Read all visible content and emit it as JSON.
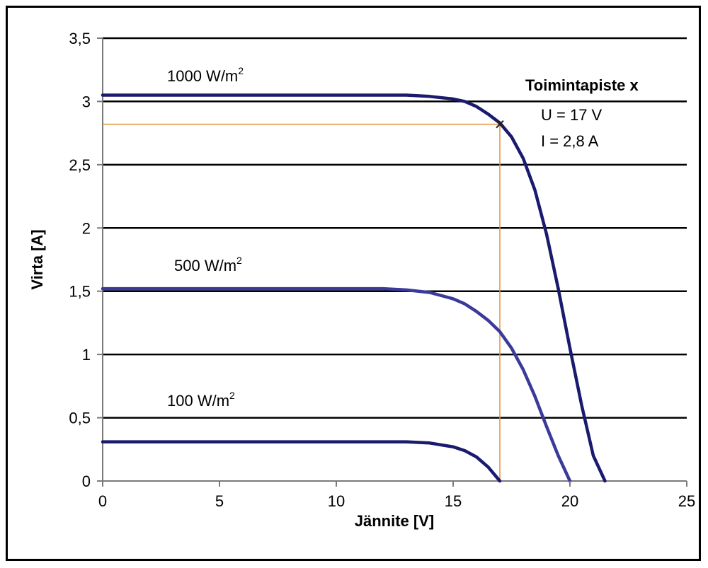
{
  "chart_data": {
    "type": "line",
    "xlabel": "Jännite [V]",
    "ylabel": "Virta [A]",
    "xlim": [
      0,
      25
    ],
    "ylim": [
      0,
      3.5
    ],
    "x_ticks": [
      "0",
      "5",
      "10",
      "15",
      "20",
      "25"
    ],
    "y_ticks": [
      "0",
      "0,5",
      "1",
      "1,5",
      "2",
      "2,5",
      "3",
      "3,5"
    ],
    "grid": "horizontal",
    "series": [
      {
        "name": "1000 W/m2",
        "label_main": "1000 W/m",
        "label_sup": "2",
        "color": "#1a1a6e",
        "x": [
          0,
          5,
          10,
          13,
          14,
          15,
          15.5,
          16,
          16.5,
          17,
          17.5,
          18,
          18.5,
          19,
          19.5,
          20,
          20.5,
          21,
          21.5
        ],
        "y": [
          3.05,
          3.05,
          3.05,
          3.05,
          3.04,
          3.02,
          3.0,
          2.96,
          2.9,
          2.83,
          2.72,
          2.55,
          2.3,
          1.95,
          1.52,
          1.05,
          0.6,
          0.2,
          0.0
        ]
      },
      {
        "name": "500 W/m2",
        "label_main": "500 W/m",
        "label_sup": "2",
        "color": "#3a3a9a",
        "x": [
          0,
          5,
          10,
          12,
          13,
          14,
          15,
          15.5,
          16,
          16.5,
          17,
          17.5,
          18,
          18.5,
          19,
          19.5,
          20
        ],
        "y": [
          1.52,
          1.52,
          1.52,
          1.52,
          1.51,
          1.49,
          1.44,
          1.4,
          1.34,
          1.27,
          1.18,
          1.05,
          0.88,
          0.67,
          0.43,
          0.2,
          0.0
        ]
      },
      {
        "name": "100 W/m2",
        "label_main": "100 W/m",
        "label_sup": "2",
        "color": "#1a1a6e",
        "x": [
          0,
          5,
          10,
          13,
          14,
          15,
          15.5,
          16,
          16.5,
          17
        ],
        "y": [
          0.31,
          0.31,
          0.31,
          0.31,
          0.3,
          0.27,
          0.24,
          0.19,
          0.11,
          0.0
        ]
      }
    ],
    "operating_point": {
      "x": 17,
      "y": 2.82,
      "marker": "x",
      "color": "#e0903a"
    },
    "annotation": {
      "title": "Toimintapiste x",
      "line1": "U = 17 V",
      "line2": "I = 2,8 A"
    }
  }
}
